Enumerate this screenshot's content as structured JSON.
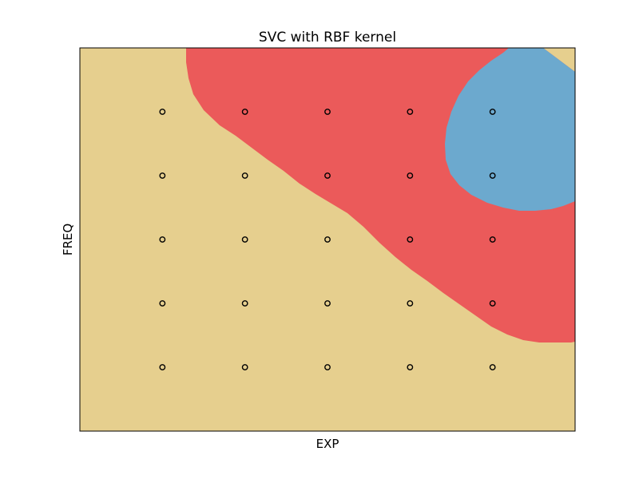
{
  "chart_data": {
    "type": "scatter",
    "title": "SVC with RBF kernel",
    "xlabel": "EXP",
    "ylabel": "FREQ",
    "xlim": [
      0,
      6
    ],
    "ylim": [
      0,
      6
    ],
    "xticks": [],
    "yticks": [],
    "grid": false,
    "legend": "none",
    "colors": {
      "background_region": "#e6cf8e",
      "red_region": "#eb5a5a",
      "blue_region": "#6ca9ce",
      "point_edge": "#000000"
    },
    "regions": [
      {
        "class": "red",
        "color": "#eb5a5a"
      },
      {
        "class": "blue",
        "color": "#6ca9ce"
      },
      {
        "class": "tan",
        "color": "#e6cf8e"
      }
    ],
    "points": [
      {
        "x": 1,
        "y": 5,
        "class": "tan"
      },
      {
        "x": 2,
        "y": 5,
        "class": "red"
      },
      {
        "x": 3,
        "y": 5,
        "class": "red"
      },
      {
        "x": 4,
        "y": 5,
        "class": "red"
      },
      {
        "x": 5,
        "y": 5,
        "class": "blue"
      },
      {
        "x": 1,
        "y": 4,
        "class": "tan"
      },
      {
        "x": 2,
        "y": 4,
        "class": "tan"
      },
      {
        "x": 3,
        "y": 4,
        "class": "red"
      },
      {
        "x": 4,
        "y": 4,
        "class": "red"
      },
      {
        "x": 5,
        "y": 4,
        "class": "blue"
      },
      {
        "x": 1,
        "y": 3,
        "class": "tan"
      },
      {
        "x": 2,
        "y": 3,
        "class": "tan"
      },
      {
        "x": 3,
        "y": 3,
        "class": "tan"
      },
      {
        "x": 4,
        "y": 3,
        "class": "red"
      },
      {
        "x": 5,
        "y": 3,
        "class": "red"
      },
      {
        "x": 1,
        "y": 2,
        "class": "tan"
      },
      {
        "x": 2,
        "y": 2,
        "class": "tan"
      },
      {
        "x": 3,
        "y": 2,
        "class": "tan"
      },
      {
        "x": 4,
        "y": 2,
        "class": "tan"
      },
      {
        "x": 5,
        "y": 2,
        "class": "red"
      },
      {
        "x": 1,
        "y": 1,
        "class": "tan"
      },
      {
        "x": 2,
        "y": 1,
        "class": "tan"
      },
      {
        "x": 3,
        "y": 1,
        "class": "tan"
      },
      {
        "x": 4,
        "y": 1,
        "class": "tan"
      },
      {
        "x": 5,
        "y": 1,
        "class": "tan"
      }
    ]
  }
}
